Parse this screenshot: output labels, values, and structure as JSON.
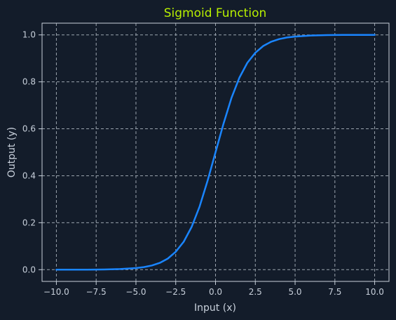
{
  "chart_data": {
    "type": "line",
    "title": "Sigmoid Function",
    "xlabel": "Input (x)",
    "ylabel": "Output (y)",
    "xlim": [
      -10.9,
      10.9
    ],
    "ylim": [
      -0.05,
      1.05
    ],
    "xticks": [
      -10.0,
      -7.5,
      -5.0,
      -2.5,
      0.0,
      2.5,
      5.0,
      7.5,
      10.0
    ],
    "xtick_labels": [
      "−10.0",
      "−7.5",
      "−5.0",
      "−2.5",
      "0.0",
      "2.5",
      "5.0",
      "7.5",
      "10.0"
    ],
    "yticks": [
      0.0,
      0.2,
      0.4,
      0.6,
      0.8,
      1.0
    ],
    "ytick_labels": [
      "0.0",
      "0.2",
      "0.4",
      "0.6",
      "0.8",
      "1.0"
    ],
    "grid": true,
    "series": [
      {
        "color": "#1a85ff",
        "x": [
          -10,
          -9,
          -8,
          -7,
          -6,
          -5,
          -4.5,
          -4,
          -3.5,
          -3,
          -2.5,
          -2,
          -1.5,
          -1,
          -0.5,
          0,
          0.5,
          1,
          1.5,
          2,
          2.5,
          3,
          3.5,
          4,
          4.5,
          5,
          6,
          7,
          8,
          9,
          10
        ],
        "y": [
          5e-05,
          0.0001,
          0.0003,
          0.0009,
          0.0025,
          0.0067,
          0.011,
          0.018,
          0.029,
          0.047,
          0.076,
          0.119,
          0.182,
          0.269,
          0.378,
          0.5,
          0.622,
          0.731,
          0.818,
          0.881,
          0.924,
          0.953,
          0.971,
          0.982,
          0.989,
          0.993,
          0.9975,
          0.9991,
          0.9997,
          0.9999,
          0.99995
        ]
      }
    ]
  },
  "colors": {
    "background": "#131c2a",
    "title": "#b8f000",
    "line": "#1a85ff",
    "axes": "#c8d0db",
    "grid": "#9aa3ad"
  }
}
